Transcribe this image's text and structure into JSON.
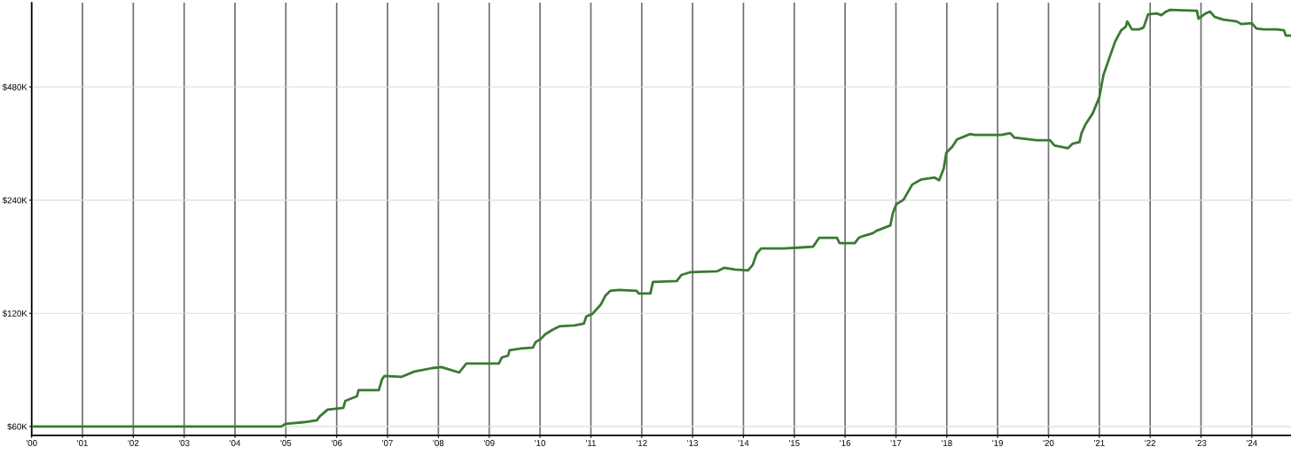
{
  "chart_data": {
    "type": "line",
    "log": "y",
    "grid": true,
    "marker": "none",
    "line_style": "solid",
    "xlim": [
      2000,
      2024.77
    ],
    "xticks": [
      {
        "value": 2000,
        "label": "'00"
      },
      {
        "value": 2001,
        "label": "'01"
      },
      {
        "value": 2002,
        "label": "'02"
      },
      {
        "value": 2003,
        "label": "'03"
      },
      {
        "value": 2004,
        "label": "'04"
      },
      {
        "value": 2005,
        "label": "'05"
      },
      {
        "value": 2006,
        "label": "'06"
      },
      {
        "value": 2007,
        "label": "'07"
      },
      {
        "value": 2008,
        "label": "'08"
      },
      {
        "value": 2009,
        "label": "'09"
      },
      {
        "value": 2010,
        "label": "'10"
      },
      {
        "value": 2011,
        "label": "'11"
      },
      {
        "value": 2012,
        "label": "'12"
      },
      {
        "value": 2013,
        "label": "'13"
      },
      {
        "value": 2014,
        "label": "'14"
      },
      {
        "value": 2015,
        "label": "'15"
      },
      {
        "value": 2016,
        "label": "'16"
      },
      {
        "value": 2017,
        "label": "'17"
      },
      {
        "value": 2018,
        "label": "'18"
      },
      {
        "value": 2019,
        "label": "'19"
      },
      {
        "value": 2020,
        "label": "'20"
      },
      {
        "value": 2021,
        "label": "'21"
      },
      {
        "value": 2022,
        "label": "'22"
      },
      {
        "value": 2023,
        "label": "'23"
      },
      {
        "value": 2024,
        "label": "'24"
      }
    ],
    "ylim": [
      56800,
      804000
    ],
    "yticks": [
      {
        "value": 60000,
        "label": "$60K"
      },
      {
        "value": 120000,
        "label": "$120K"
      },
      {
        "value": 240000,
        "label": "$240K"
      },
      {
        "value": 480000,
        "label": "$480K"
      }
    ],
    "series": [
      {
        "color": "#3a7a32",
        "x": [
          2000.02,
          2004.91,
          2005.0,
          2005.35,
          2005.61,
          2005.66,
          2005.82,
          2006.13,
          2006.17,
          2006.4,
          2006.43,
          2006.83,
          2006.89,
          2006.94,
          2007.27,
          2007.53,
          2007.88,
          2008.06,
          2008.23,
          2008.41,
          2008.55,
          2009.19,
          2009.25,
          2009.37,
          2009.4,
          2009.63,
          2009.86,
          2009.91,
          2010.02,
          2010.1,
          2010.24,
          2010.38,
          2010.68,
          2010.86,
          2010.91,
          2011.03,
          2011.2,
          2011.29,
          2011.38,
          2011.55,
          2011.9,
          2011.94,
          2012.17,
          2012.22,
          2012.69,
          2012.78,
          2012.95,
          2013.48,
          2013.62,
          2013.83,
          2014.09,
          2014.18,
          2014.26,
          2014.35,
          2014.79,
          2015.14,
          2015.37,
          2015.49,
          2015.84,
          2015.89,
          2016.19,
          2016.27,
          2016.36,
          2016.54,
          2016.62,
          2016.89,
          2016.94,
          2017.01,
          2017.15,
          2017.32,
          2017.5,
          2017.76,
          2017.85,
          2017.94,
          2017.99,
          2018.11,
          2018.2,
          2018.46,
          2018.55,
          2019.07,
          2019.25,
          2019.33,
          2019.77,
          2020.03,
          2020.12,
          2020.3,
          2020.38,
          2020.47,
          2020.61,
          2020.65,
          2020.73,
          2020.87,
          2021.0,
          2021.08,
          2021.17,
          2021.31,
          2021.43,
          2021.52,
          2021.55,
          2021.64,
          2021.78,
          2021.87,
          2021.96,
          2022.13,
          2022.22,
          2022.31,
          2022.39,
          2022.92,
          2022.95,
          2023.09,
          2023.18,
          2023.27,
          2023.44,
          2023.7,
          2023.79,
          2024.0,
          2024.09,
          2024.23,
          2024.49,
          2024.63,
          2024.67,
          2024.75
        ],
        "values": [
          60000,
          60000,
          61000,
          61600,
          62300,
          63700,
          66500,
          67200,
          70200,
          72200,
          75000,
          75000,
          80000,
          81800,
          81300,
          84000,
          85800,
          86300,
          84900,
          83500,
          88200,
          88200,
          91600,
          92600,
          95700,
          96800,
          97300,
          100500,
          102700,
          105500,
          108400,
          110800,
          111400,
          112600,
          117700,
          119600,
          126900,
          134000,
          137700,
          138500,
          137700,
          135500,
          135500,
          145400,
          146200,
          151800,
          154300,
          155200,
          158600,
          156900,
          156000,
          161200,
          172900,
          178600,
          178600,
          179600,
          180500,
          190600,
          190600,
          184500,
          184500,
          190600,
          192700,
          195800,
          199000,
          205600,
          221900,
          234300,
          240700,
          263900,
          272500,
          275500,
          271100,
          291100,
          320900,
          333300,
          348100,
          359700,
          357700,
          357700,
          361600,
          351900,
          346200,
          346200,
          335100,
          331500,
          329700,
          338800,
          342500,
          361600,
          382200,
          408200,
          450700,
          516000,
          559400,
          633300,
          679300,
          694100,
          717100,
          683000,
          683000,
          690400,
          748900,
          753000,
          744900,
          761200,
          769600,
          765400,
          728900,
          753000,
          761200,
          736900,
          725000,
          717100,
          705500,
          709300,
          686700,
          683000,
          683000,
          679300,
          657200,
          657200
        ]
      }
    ]
  }
}
